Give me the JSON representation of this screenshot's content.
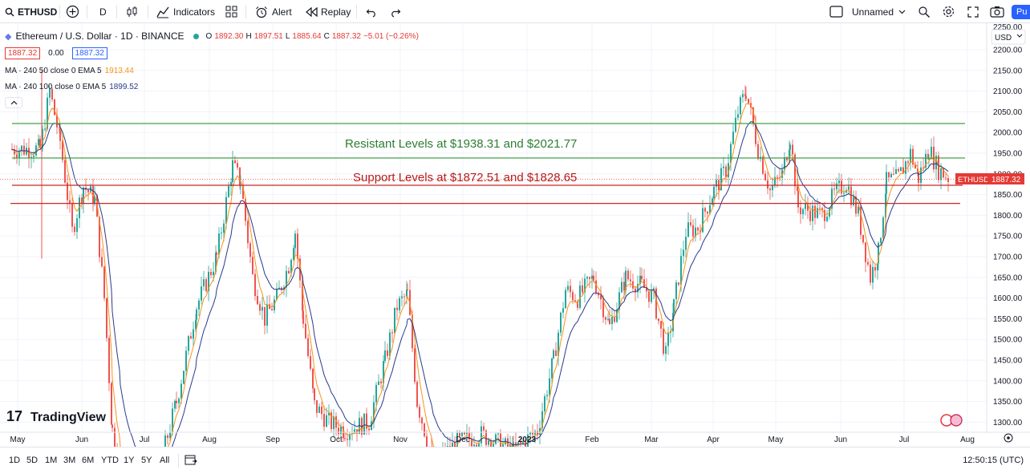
{
  "toolbar": {
    "symbol": "ETHUSD",
    "interval": "D",
    "indicators_label": "Indicators",
    "alert_label": "Alert",
    "replay_label": "Replay",
    "layout_name": "Unnamed",
    "publish_label": "Pu"
  },
  "legend": {
    "title": "Ethereum / U.S. Dollar · 1D · BINANCE",
    "ohlc": {
      "o_label": "O",
      "o": "1892.30",
      "h_label": "H",
      "h": "1897.51",
      "l_label": "L",
      "l": "1885.64",
      "c_label": "C",
      "c": "1887.32",
      "change": "−5.01 (−0.26%)"
    },
    "sell_price": "1887.32",
    "spread": "0.00",
    "buy_price": "1887.32",
    "ma1_label": "MA · 240 50 close 0 EMA 5",
    "ma1_value": "1913.44",
    "ma2_label": "MA · 240 100 close 0 EMA 5",
    "ma2_value": "1899.52"
  },
  "colors": {
    "up": "#26a69a",
    "down": "#ef5350",
    "ma_fast": "#f7931a",
    "ma_slow": "#2a3a8c",
    "resistance": "#43a047",
    "support": "#c62828"
  },
  "price_axis": {
    "currency": "USD",
    "ticks": [
      "2200.00",
      "2150.00",
      "2100.00",
      "2050.00",
      "2000.00",
      "1950.00",
      "1900.00",
      "1850.00",
      "1800.00",
      "1750.00",
      "1700.00",
      "1650.00",
      "1600.00",
      "1550.00",
      "1500.00",
      "1450.00",
      "1400.00",
      "1350.00",
      "1300.00"
    ],
    "top_partial": "2250.00",
    "last_symbol": "ETHUSD",
    "last_price": "1887.32"
  },
  "time_axis": {
    "ticks": [
      "May",
      "Jun",
      "Jul",
      "Aug",
      "Sep",
      "Oct",
      "Nov",
      "Dec",
      "2023",
      "Feb",
      "Mar",
      "Apr",
      "May",
      "Jun",
      "Jul",
      "Aug"
    ]
  },
  "bottom": {
    "ranges": [
      "1D",
      "5D",
      "1M",
      "3M",
      "6M",
      "YTD",
      "1Y",
      "5Y",
      "All"
    ],
    "clock": "12:50:15 (UTC)"
  },
  "branding": {
    "logo_text": "TradingView"
  },
  "chart_data": {
    "type": "line",
    "title": "Ethereum / U.S. Dollar · 1D · BINANCE",
    "x": [
      "2022-05",
      "2022-06",
      "2022-07",
      "2022-08",
      "2022-09",
      "2022-10",
      "2022-11",
      "2022-12",
      "2023-01",
      "2023-02",
      "2023-03",
      "2023-04",
      "2023-05",
      "2023-06",
      "2023-07"
    ],
    "ylim": [
      1280,
      2260
    ],
    "series": [
      {
        "name": "ETHUSD",
        "values": [
          2000,
          1880,
          1170,
          1700,
          1570,
          1310,
          1330,
          1270,
          1290,
          1650,
          1420,
          1930,
          1840,
          1730,
          1887
        ]
      }
    ],
    "annotations": [
      {
        "text": "Resistant Levels at $1938.31 and $2021.77",
        "levels": [
          1938.31,
          2021.77
        ]
      },
      {
        "text": "Support Levels at $1872.51 and $1828.65",
        "levels": [
          1872.51,
          1828.65
        ]
      }
    ],
    "grid": true
  }
}
